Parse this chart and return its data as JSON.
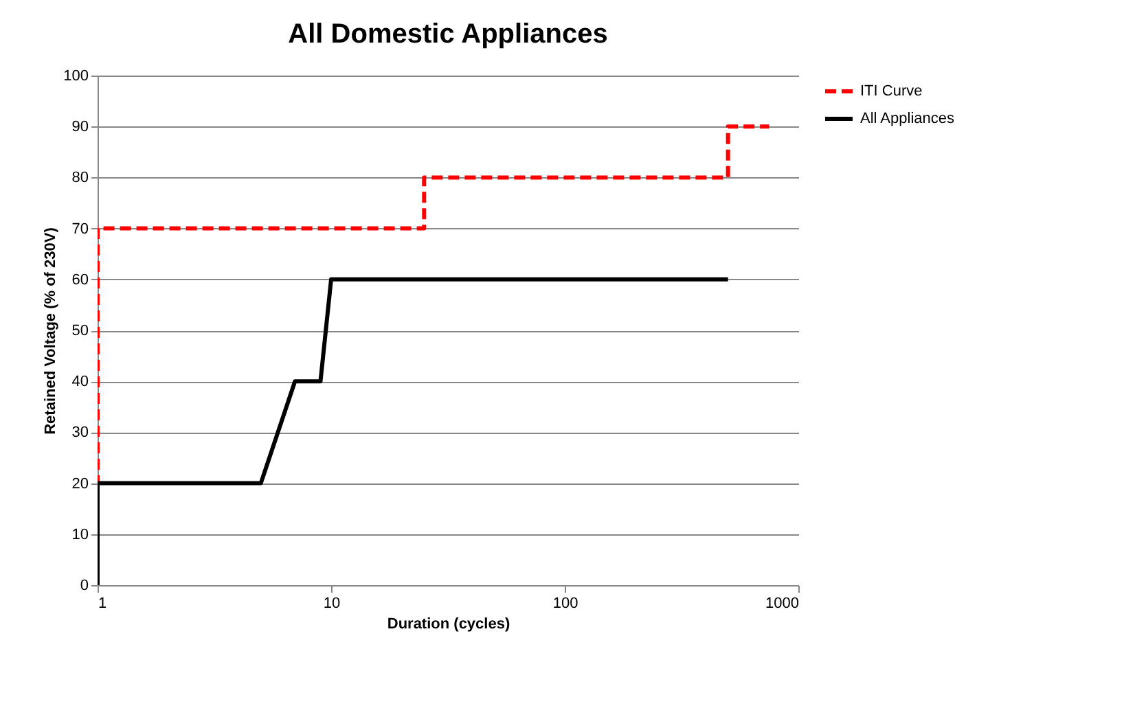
{
  "chart_data": {
    "type": "line",
    "title": "All Domestic Appliances",
    "xlabel": "Duration (cycles)",
    "ylabel": "Retained Voltage (% of 230V)",
    "series": [
      {
        "name": "ITI Curve",
        "color": "#ff0000",
        "line_style": "dashed",
        "x": [
          1,
          1,
          25,
          25,
          500,
          500,
          750
        ],
        "values": [
          0,
          70,
          70,
          80,
          80,
          90,
          90
        ]
      },
      {
        "name": "All Appliances",
        "color": "#000000",
        "line_style": "solid",
        "x": [
          1,
          1,
          5,
          7,
          9,
          10,
          500
        ],
        "values": [
          0,
          20,
          20,
          40,
          40,
          60,
          60
        ]
      }
    ],
    "log": "x",
    "xlim": [
      1,
      1000
    ],
    "xticks": [
      1,
      10,
      100,
      1000
    ],
    "ylim": [
      0,
      100
    ],
    "yticks": [
      0,
      10,
      20,
      30,
      40,
      50,
      60,
      70,
      80,
      90,
      100
    ],
    "grid": "y",
    "legend": "right"
  }
}
